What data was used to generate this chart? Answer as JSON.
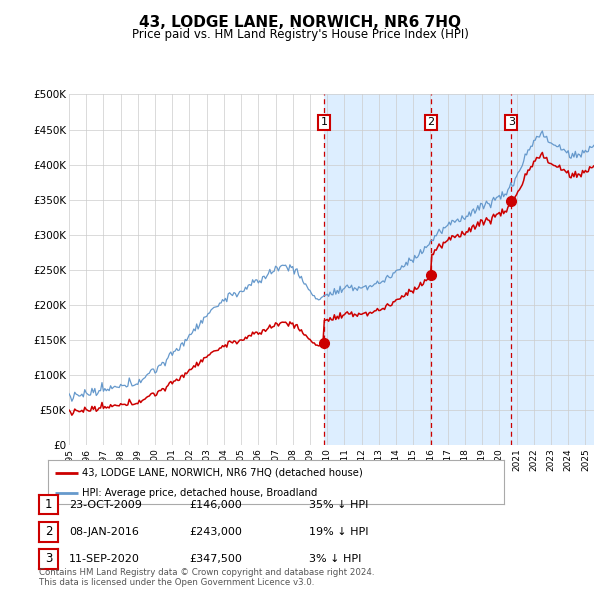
{
  "title": "43, LODGE LANE, NORWICH, NR6 7HQ",
  "subtitle": "Price paid vs. HM Land Registry's House Price Index (HPI)",
  "background_color": "#ffffff",
  "plot_bg_color": "#ffffff",
  "shaded_region_color": "#ddeeff",
  "grid_color": "#cccccc",
  "red_line_color": "#cc0000",
  "blue_line_color": "#6699cc",
  "purchase_dashed_color": "#cc0000",
  "legend_entries": [
    "43, LODGE LANE, NORWICH, NR6 7HQ (detached house)",
    "HPI: Average price, detached house, Broadland"
  ],
  "table_rows": [
    [
      "1",
      "23-OCT-2009",
      "£146,000",
      "35% ↓ HPI"
    ],
    [
      "2",
      "08-JAN-2016",
      "£243,000",
      "19% ↓ HPI"
    ],
    [
      "3",
      "11-SEP-2020",
      "£347,500",
      "3% ↓ HPI"
    ]
  ],
  "footnote": "Contains HM Land Registry data © Crown copyright and database right 2024.\nThis data is licensed under the Open Government Licence v3.0.",
  "xmin": 1995.0,
  "xmax": 2025.5,
  "ymin": 0,
  "ymax": 500000,
  "yticks": [
    0,
    50000,
    100000,
    150000,
    200000,
    250000,
    300000,
    350000,
    400000,
    450000,
    500000
  ],
  "ytick_labels": [
    "£0",
    "£50K",
    "£100K",
    "£150K",
    "£200K",
    "£250K",
    "£300K",
    "£350K",
    "£400K",
    "£450K",
    "£500K"
  ],
  "purchase_dates": [
    2009.81,
    2016.03,
    2020.69
  ],
  "purchase_prices": [
    146000,
    243000,
    347500
  ],
  "purchase_labels": [
    "1",
    "2",
    "3"
  ]
}
